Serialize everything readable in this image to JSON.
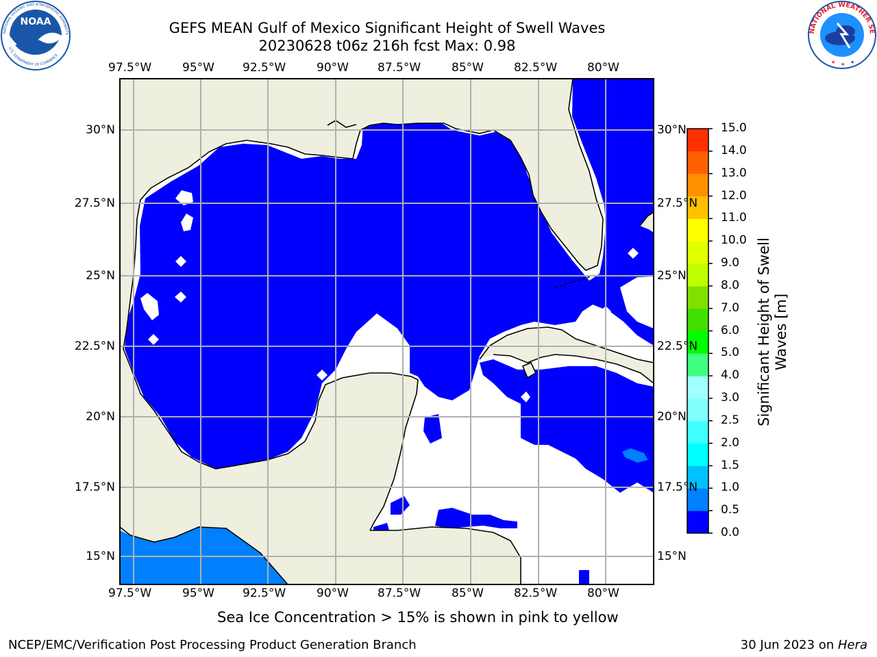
{
  "title": {
    "line1": "GEFS MEAN Gulf of Mexico Significant Height of Swell Waves",
    "line2": "20230628 t06z 216h fcst   Max: 0.98"
  },
  "logos": {
    "noaa": {
      "text": "NOAA",
      "ring_text": "NATIONAL OCEANIC AND ATMOSPHERIC ADMINISTRATION · U.S. DEPARTMENT OF COMMERCE",
      "color": "#1a56a8"
    },
    "nws": {
      "ring_text": "NATIONAL WEATHER SERVICE",
      "color": "#e8202a"
    }
  },
  "map": {
    "lon_ticks": [
      "97.5°W",
      "95°W",
      "92.5°W",
      "90°W",
      "87.5°W",
      "85°W",
      "82.5°W",
      "80°W"
    ],
    "lat_ticks_left": [
      "30°N",
      "27.5°N",
      "25°N",
      "22.5°N",
      "20°N",
      "17.5°N",
      "15°N"
    ],
    "lat_ticks_right": [
      "30°N",
      "27.5°N",
      "25°N",
      "22.5°N",
      "20°N",
      "17.5°N",
      "15°N"
    ],
    "colors": {
      "land": "#efefdf",
      "water_low": "#0000ff",
      "water_mid": "#0080ff",
      "grid": "#b0b0b0",
      "coast": "#000000"
    }
  },
  "colorbar": {
    "label_line1": "Significant Height of Swell",
    "label_line2": "Waves [m]",
    "ticks": [
      "0.0",
      "0.5",
      "1.0",
      "1.5",
      "2.0",
      "2.5",
      "3.0",
      "4.0",
      "5.0",
      "6.0",
      "7.0",
      "8.0",
      "9.0",
      "10.0",
      "11.0",
      "12.0",
      "13.0",
      "14.0",
      "15.0"
    ],
    "colors": [
      "#0000ff",
      "#0080ff",
      "#00c0ff",
      "#00ffff",
      "#40ffff",
      "#80ffff",
      "#a0ffff",
      "#40ff80",
      "#00ff00",
      "#40e000",
      "#80e000",
      "#c0ff00",
      "#e0ff00",
      "#ffff00",
      "#ffc000",
      "#ff9000",
      "#ff6000",
      "#ff3000",
      "#ff0000"
    ]
  },
  "caption": "Sea Ice Concentration > 15% is shown in pink to yellow",
  "footer": {
    "left": "NCEP/EMC/Verification Post Processing Product Generation Branch",
    "right_prefix": "30 Jun 2023 on ",
    "right_host": "Hera"
  }
}
